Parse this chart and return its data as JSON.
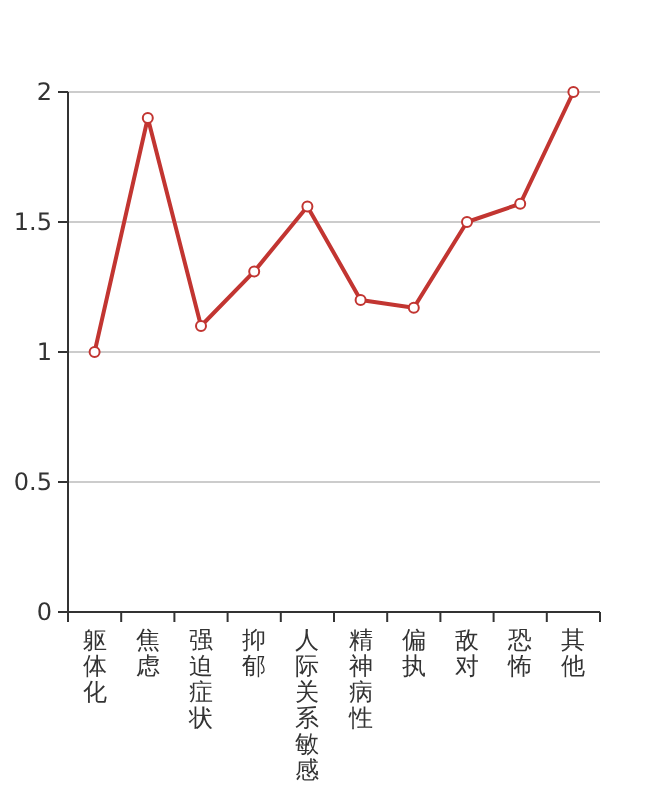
{
  "chart_data": {
    "type": "line",
    "categories": [
      "躯体化",
      "焦虑",
      "强迫症状",
      "抑郁",
      "人际关系敏感",
      "精神病性",
      "偏执",
      "敌对",
      "恐怖",
      "其他"
    ],
    "series": [
      {
        "color": "#c23531",
        "values": [
          1.0,
          1.9,
          1.1,
          1.31,
          1.56,
          1.2,
          1.17,
          1.5,
          1.57,
          2.0
        ]
      }
    ],
    "ylim": [
      0,
      2
    ],
    "yticks": [
      0,
      0.5,
      1,
      1.5,
      2
    ],
    "grid": "y",
    "marker": "circle",
    "line_style": "solid"
  }
}
